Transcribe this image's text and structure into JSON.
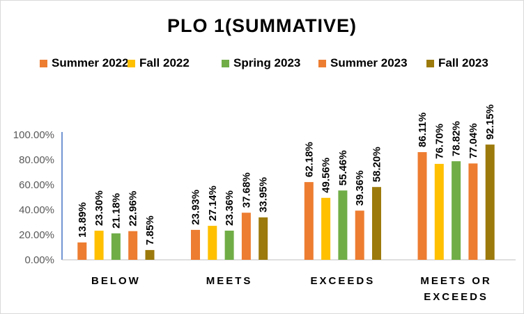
{
  "chart_data": {
    "type": "bar",
    "title": "PLO 1(SUMMATIVE)",
    "categories": [
      [
        "BELOW"
      ],
      [
        "MEETS"
      ],
      [
        "EXCEEDS"
      ],
      [
        "MEETS OR",
        "EXCEEDS"
      ]
    ],
    "series": [
      {
        "name": "Summer 2022",
        "color": "#ED7D31",
        "values": [
          13.89,
          23.93,
          62.18,
          86.11
        ],
        "labels": [
          "13.89%",
          "23.93%",
          "62.18%",
          "86.11%"
        ]
      },
      {
        "name": "Fall 2022",
        "color": "#FFC000",
        "values": [
          23.3,
          27.14,
          49.56,
          76.7
        ],
        "labels": [
          "23.30%",
          "27.14%",
          "49.56%",
          "76.70%"
        ]
      },
      {
        "name": "Spring 2023",
        "color": "#70AD47",
        "values": [
          21.18,
          23.36,
          55.46,
          78.82
        ],
        "labels": [
          "21.18%",
          "23.36%",
          "55.46%",
          "78.82%"
        ]
      },
      {
        "name": "Summer 2023",
        "color": "#ED7D31",
        "values": [
          22.96,
          37.68,
          39.36,
          77.04
        ],
        "labels": [
          "22.96%",
          "37.68%",
          "39.36%",
          "77.04%"
        ]
      },
      {
        "name": "Fall 2023",
        "color": "#9C7A0C",
        "values": [
          7.85,
          33.95,
          58.2,
          92.15
        ],
        "labels": [
          "7.85%",
          "33.95%",
          "58.20%",
          "92.15%"
        ]
      }
    ],
    "ylim": [
      0,
      100
    ],
    "yticks": [
      "0.00%",
      "20.00%",
      "40.00%",
      "60.00%",
      "80.00%",
      "100.00%"
    ],
    "grid": false,
    "legend": "top"
  }
}
